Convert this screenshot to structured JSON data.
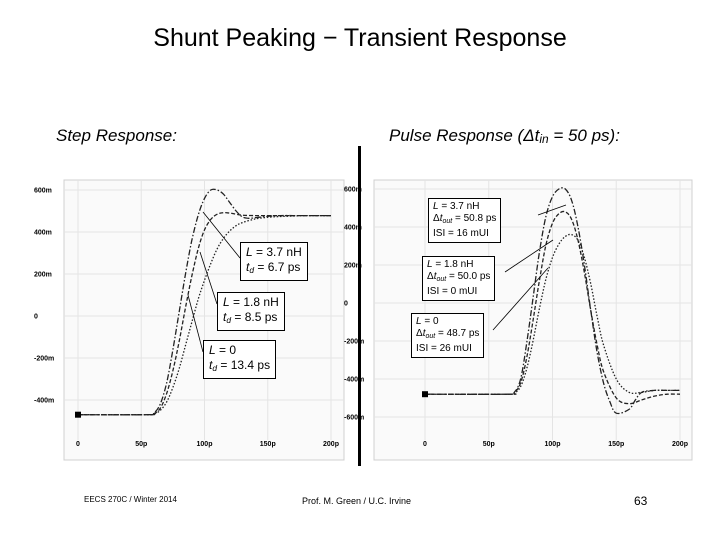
{
  "slide": {
    "title": "Shunt Peaking − Transient Response",
    "left_subtitle": "Step Response:",
    "right_subtitle_prefix": "Pulse Response (",
    "right_subtitle_delta": "Δ",
    "right_subtitle_var": "t",
    "right_subtitle_sub": "in",
    "right_subtitle_suffix": " = 50 ps):",
    "footer_left": "EECS 270C / Winter 2014",
    "footer_center": "Prof. M. Green / U.C. Irvine",
    "page_number": "63"
  },
  "step_labels": [
    {
      "L": "3.7 nH",
      "t": "6.7 ps"
    },
    {
      "L": "1.8 nH",
      "t": "8.5 ps"
    },
    {
      "L": "0",
      "t": "13.4 ps"
    }
  ],
  "pulse_labels": [
    {
      "L": "3.7 nH",
      "dt": "50.8 ps",
      "isi": "ISI = 16 mUI"
    },
    {
      "L": "1.8 nH",
      "dt": "50.0 ps",
      "isi": "ISI = 0 mUI"
    },
    {
      "L": "0",
      "dt": "48.7 ps",
      "isi": "ISI = 26 mUI"
    }
  ],
  "label_text": {
    "L": "L",
    "eq": " = ",
    "t": "t",
    "d_sub": "d",
    "delta": "Δ",
    "out_sub": "out"
  },
  "chart_data": [
    {
      "type": "line",
      "title": "Step Response:",
      "xlim": [
        0,
        200
      ],
      "ylim": [
        -500,
        650
      ],
      "x_ticks": [
        "0",
        "50p",
        "100p",
        "150p",
        "200p"
      ],
      "x_tick_values": [
        0,
        50,
        100,
        150,
        200
      ],
      "y_ticks": [
        "600m",
        "400m",
        "200m",
        "0",
        "-200m",
        "-400m"
      ],
      "y_tick_values": [
        600,
        400,
        200,
        0,
        -200,
        -400
      ],
      "grid": true,
      "series": [
        {
          "name": "L = 3.7 nH",
          "dash": "dashdot",
          "x": [
            0,
            55,
            60,
            65,
            70,
            75,
            80,
            85,
            90,
            95,
            100,
            105,
            110,
            115,
            120,
            125,
            130,
            135,
            140,
            150,
            160,
            170,
            180,
            190,
            200
          ],
          "y": [
            -470,
            -470,
            -462,
            -420,
            -320,
            -160,
            20,
            200,
            360,
            480,
            560,
            600,
            600,
            580,
            540,
            500,
            472,
            465,
            468,
            475,
            478,
            478,
            478,
            478,
            478
          ]
        },
        {
          "name": "L = 1.8 nH",
          "dash": "dashed",
          "x": [
            0,
            55,
            60,
            65,
            70,
            75,
            80,
            85,
            90,
            95,
            100,
            105,
            110,
            115,
            120,
            125,
            130,
            140,
            150,
            160,
            170,
            180,
            200
          ],
          "y": [
            -470,
            -470,
            -465,
            -440,
            -370,
            -260,
            -120,
            40,
            190,
            320,
            410,
            460,
            485,
            492,
            490,
            485,
            480,
            478,
            478,
            478,
            478,
            478,
            478
          ]
        },
        {
          "name": "L = 0",
          "dash": "dotted",
          "x": [
            0,
            55,
            60,
            65,
            70,
            75,
            80,
            85,
            90,
            95,
            100,
            105,
            110,
            115,
            120,
            125,
            130,
            140,
            150,
            160,
            170,
            180,
            200
          ],
          "y": [
            -470,
            -470,
            -466,
            -450,
            -410,
            -340,
            -250,
            -140,
            -30,
            80,
            170,
            250,
            320,
            370,
            405,
            430,
            445,
            462,
            470,
            474,
            476,
            478,
            478
          ]
        }
      ]
    },
    {
      "type": "line",
      "title": "Pulse Response",
      "xlim": [
        0,
        200
      ],
      "ylim": [
        -650,
        650
      ],
      "x_ticks": [
        "0",
        "50p",
        "100p",
        "150p",
        "200p"
      ],
      "x_tick_values": [
        0,
        50,
        100,
        150,
        200
      ],
      "y_ticks": [
        "600m",
        "400m",
        "200m",
        "0",
        "-200m",
        "-400m",
        "-600m"
      ],
      "y_tick_values": [
        600,
        400,
        200,
        0,
        -200,
        -400,
        -600
      ],
      "grid": true,
      "series": [
        {
          "name": "L = 3.7 nH",
          "dash": "dashdot",
          "x": [
            0,
            65,
            70,
            75,
            80,
            85,
            90,
            95,
            100,
            105,
            110,
            115,
            120,
            125,
            130,
            135,
            140,
            145,
            150,
            160,
            165,
            170,
            180,
            190,
            200
          ],
          "y": [
            -480,
            -480,
            -470,
            -400,
            -200,
            40,
            280,
            460,
            560,
            600,
            600,
            540,
            400,
            200,
            -40,
            -260,
            -420,
            -520,
            -580,
            -560,
            -510,
            -470,
            -460,
            -460,
            -460
          ]
        },
        {
          "name": "L = 1.8 nH",
          "dash": "dashed",
          "x": [
            0,
            65,
            70,
            75,
            80,
            85,
            90,
            95,
            100,
            105,
            110,
            115,
            120,
            125,
            130,
            135,
            140,
            150,
            160,
            170,
            180,
            190,
            200
          ],
          "y": [
            -480,
            -480,
            -472,
            -420,
            -280,
            -80,
            130,
            310,
            420,
            470,
            480,
            440,
            330,
            160,
            -40,
            -220,
            -360,
            -500,
            -530,
            -510,
            -490,
            -480,
            -480
          ]
        },
        {
          "name": "L = 0",
          "dash": "dotted",
          "x": [
            0,
            65,
            70,
            75,
            80,
            85,
            90,
            95,
            100,
            105,
            110,
            115,
            120,
            125,
            130,
            135,
            140,
            150,
            160,
            170,
            180,
            190,
            200
          ],
          "y": [
            -480,
            -480,
            -474,
            -440,
            -340,
            -190,
            -20,
            130,
            240,
            310,
            350,
            360,
            330,
            240,
            100,
            -70,
            -220,
            -400,
            -470,
            -470,
            -460,
            -460,
            -460
          ]
        }
      ]
    }
  ]
}
